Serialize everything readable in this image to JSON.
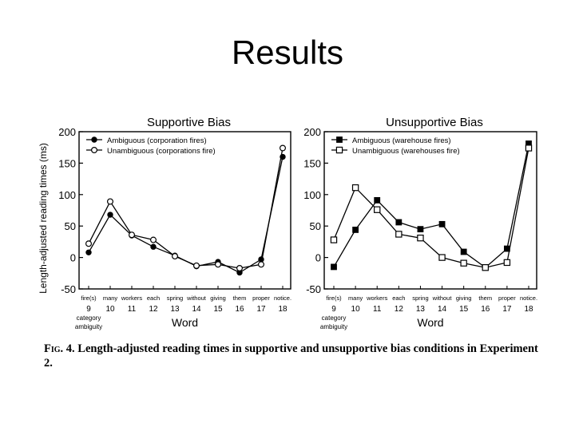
{
  "slide": {
    "title": "Results"
  },
  "caption": {
    "label": "Fig. 4.",
    "text": "Length-adjusted reading times in supportive and unsupportive bias conditions in Experiment 2."
  },
  "chart_data": [
    {
      "type": "line",
      "title": "Supportive Bias",
      "ylabel": "Length-adjusted reading times (ms)",
      "xlabel": "Word",
      "ylim": [
        -50,
        200
      ],
      "yticks": [
        200,
        150,
        100,
        50,
        0,
        -50
      ],
      "x": [
        9,
        10,
        11,
        12,
        13,
        14,
        15,
        16,
        17,
        18
      ],
      "word_labels": [
        "fire(s)",
        "many",
        "workers",
        "each",
        "spring",
        "without",
        "giving",
        "them",
        "proper",
        "notice."
      ],
      "x_note": [
        "category",
        "ambiguity"
      ],
      "legend_position": "top-left",
      "series": [
        {
          "name": "Ambiguous (corporation fires)",
          "marker": "filled-circle",
          "values": [
            8,
            68,
            35,
            17,
            3,
            -14,
            -7,
            -24,
            -3,
            160
          ]
        },
        {
          "name": "Unambiguous (corporations fire)",
          "marker": "open-circle",
          "values": [
            22,
            89,
            36,
            28,
            2,
            -13,
            -11,
            -17,
            -11,
            174
          ]
        }
      ]
    },
    {
      "type": "line",
      "title": "Unsupportive Bias",
      "ylabel": "",
      "xlabel": "Word",
      "ylim": [
        -50,
        200
      ],
      "yticks": [
        200,
        150,
        100,
        50,
        0,
        -50
      ],
      "x": [
        9,
        10,
        11,
        12,
        13,
        14,
        15,
        16,
        17,
        18
      ],
      "word_labels": [
        "fire(s)",
        "many",
        "workers",
        "each",
        "spring",
        "without",
        "giving",
        "them",
        "proper",
        "notice."
      ],
      "x_note": [
        "category",
        "ambiguity"
      ],
      "legend_position": "top-left",
      "series": [
        {
          "name": "Ambiguous (warehouse fires)",
          "marker": "filled-square",
          "values": [
            -15,
            44,
            91,
            56,
            45,
            53,
            9,
            -16,
            14,
            181
          ]
        },
        {
          "name": "Unambiguous (warehouses fire)",
          "marker": "open-square",
          "values": [
            28,
            111,
            76,
            37,
            31,
            0,
            -9,
            -16,
            -8,
            174
          ]
        }
      ]
    }
  ]
}
